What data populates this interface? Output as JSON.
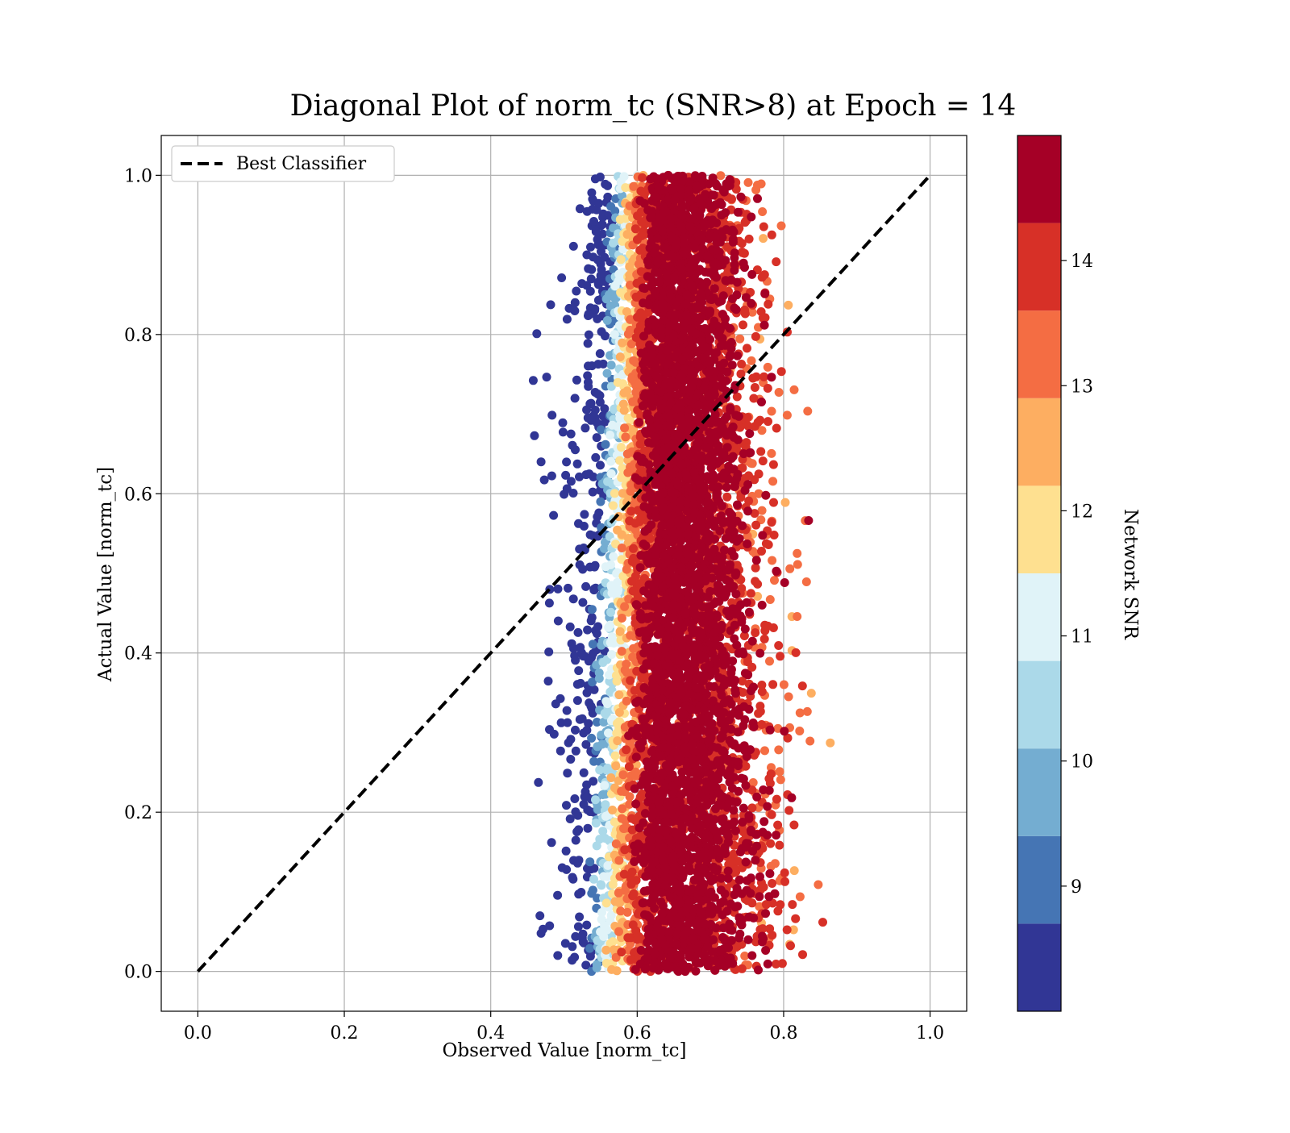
{
  "chart_data": {
    "type": "scatter",
    "title": "Diagonal Plot of norm_tc (SNR>8) at Epoch = 14",
    "xlabel": "Observed Value [norm_tc]",
    "ylabel": "Actual Value [norm_tc]",
    "xlim": [
      -0.05,
      1.05
    ],
    "ylim": [
      -0.05,
      1.05
    ],
    "xticks": [
      "0.0",
      "0.2",
      "0.4",
      "0.6",
      "0.8",
      "1.0"
    ],
    "yticks": [
      "0.0",
      "0.2",
      "0.4",
      "0.6",
      "0.8",
      "1.0"
    ],
    "grid": true,
    "legend": {
      "placement": "upper-left",
      "entries": [
        {
          "label": "Best Classifier",
          "style": "black-dashed-line"
        }
      ]
    },
    "reference_line": {
      "label": "Best Classifier",
      "x": [
        0.0,
        1.0
      ],
      "y": [
        0.0,
        1.0
      ],
      "color": "#000000",
      "style": "dashed"
    },
    "scatter_distribution": {
      "y_range": [
        0.0,
        1.0
      ],
      "x_center": 0.65,
      "x_spread_core": 0.05,
      "x_min_approx": 0.45,
      "x_max_approx": 0.88,
      "color_by": "Network SNR",
      "note_high_snr_center": true
    },
    "colorbar": {
      "label": "Network SNR",
      "min": 8,
      "max": 15,
      "ticks": [
        "9",
        "10",
        "11",
        "12",
        "13",
        "14"
      ],
      "tick_values": [
        9,
        10,
        11,
        12,
        13,
        14
      ],
      "bands": [
        "#313695",
        "#4575b4",
        "#74add1",
        "#abd9e9",
        "#e0f3f8",
        "#fee090",
        "#fdae61",
        "#f46d43",
        "#d73027",
        "#a50026"
      ],
      "band_edges": [
        8.0,
        8.7,
        9.4,
        10.1,
        10.8,
        11.5,
        12.2,
        12.9,
        13.6,
        14.3,
        15.0
      ]
    }
  }
}
